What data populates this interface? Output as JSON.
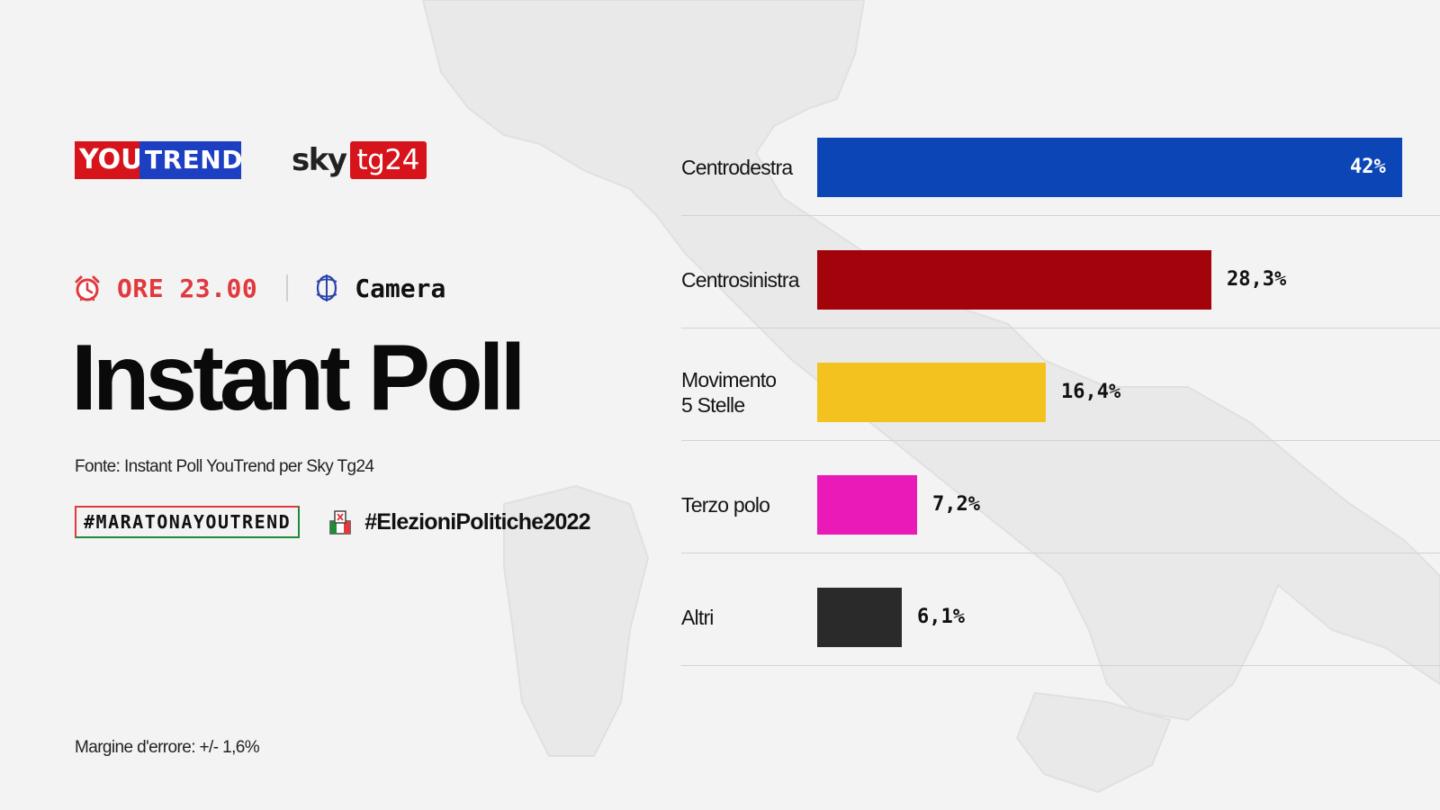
{
  "brand": {
    "youtrend_you": "YOU",
    "youtrend_trend": "TREND",
    "sky": "sky",
    "tg24": "tg24"
  },
  "meta": {
    "time": "ORE 23.00",
    "chamber": "Camera"
  },
  "title": "Instant Poll",
  "source": "Fonte: Instant Poll YouTrend per Sky Tg24",
  "hashtags": [
    "#MARATONAYOUTREND",
    "#ElezioniPolitiche2022"
  ],
  "error_note": "Margine d'errore: +/- 1,6%",
  "colors": {
    "accent_red": "#e0393e",
    "youtrend_red": "#d7141b",
    "youtrend_blue": "#1d3fc2"
  },
  "icons": [
    "clock-icon",
    "chamber-icon",
    "ballot-icon"
  ],
  "chart_data": {
    "type": "bar",
    "orientation": "horizontal",
    "categories": [
      "Centrodestra",
      "Centrosinistra",
      "Movimento\n5 Stelle",
      "Terzo polo",
      "Altri"
    ],
    "values": [
      42,
      28.3,
      16.4,
      7.2,
      6.1
    ],
    "value_labels": [
      "42%",
      "28,3%",
      "16,4%",
      "7,2%",
      "6,1%"
    ],
    "colors": [
      "#0c45b6",
      "#a3030b",
      "#f4c21e",
      "#e91ab8",
      "#2a2a2a"
    ],
    "xlim": [
      0,
      42
    ],
    "grid": false,
    "legend": "none"
  }
}
